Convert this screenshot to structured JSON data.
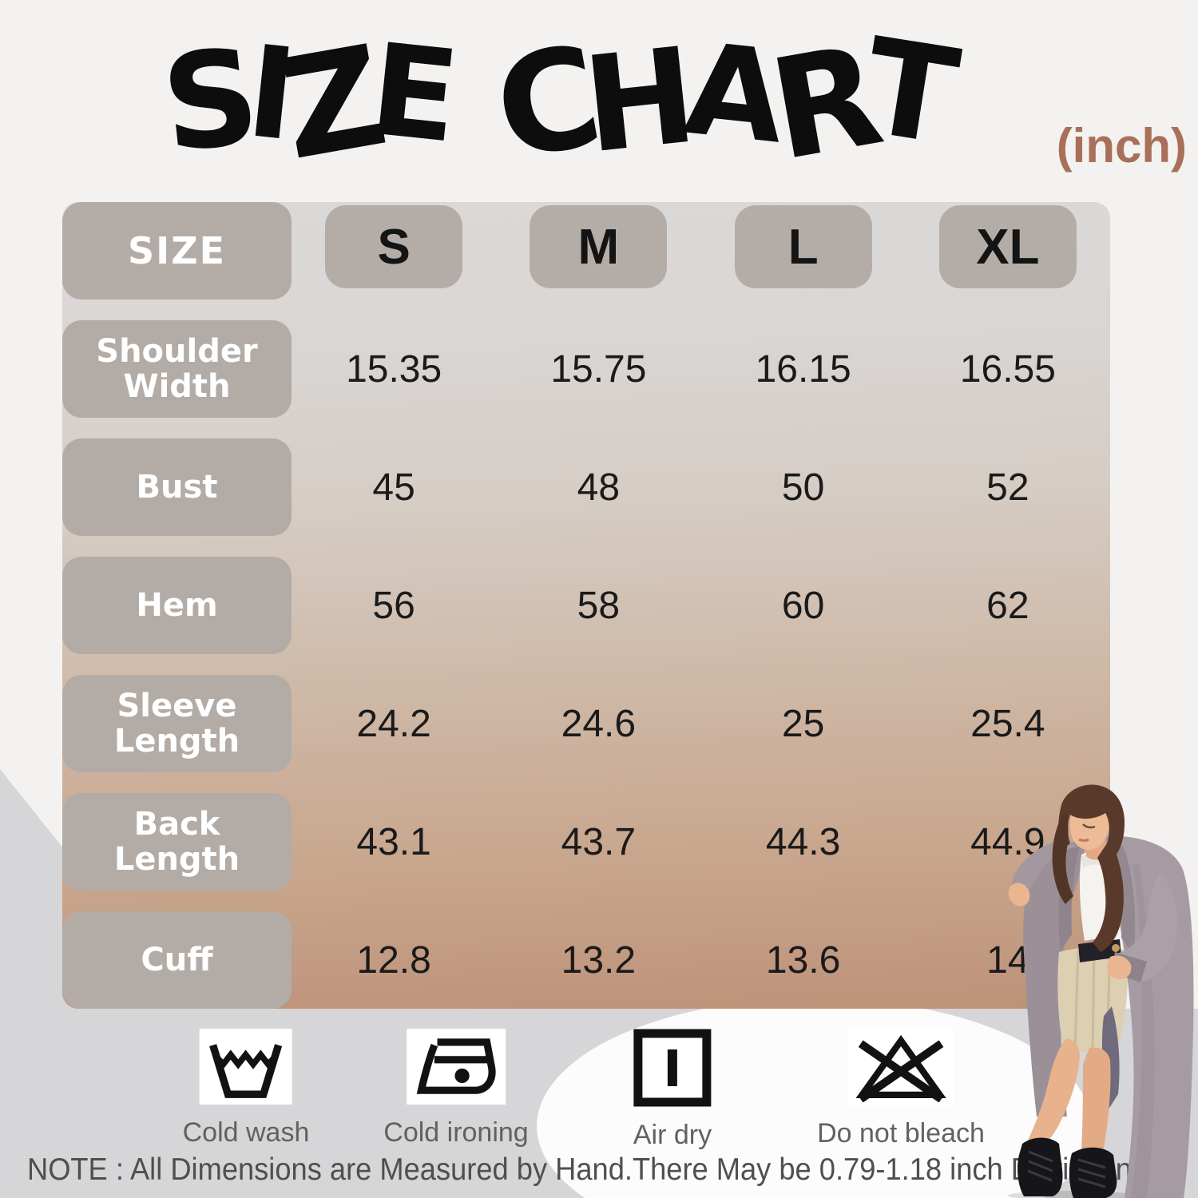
{
  "title": {
    "main": "SIZE CHART",
    "unit": "(inch)"
  },
  "table": {
    "header_label": "SIZE",
    "sizes": [
      "S",
      "M",
      "L",
      "XL"
    ],
    "rows": [
      {
        "label": "Shoulder Width",
        "values": [
          "15.35",
          "15.75",
          "16.15",
          "16.55"
        ]
      },
      {
        "label": "Bust",
        "values": [
          "45",
          "48",
          "50",
          "52"
        ]
      },
      {
        "label": "Hem",
        "values": [
          "56",
          "58",
          "60",
          "62"
        ]
      },
      {
        "label": "Sleeve Length",
        "values": [
          "24.2",
          "24.6",
          "25",
          "25.4"
        ]
      },
      {
        "label": "Back Length",
        "values": [
          "43.1",
          "43.7",
          "44.3",
          "44.9"
        ]
      },
      {
        "label": "Cuff",
        "values": [
          "12.8",
          "13.2",
          "13.6",
          "14"
        ]
      }
    ]
  },
  "care": [
    {
      "icon": "wash-tub-icon",
      "label": "Cold wash"
    },
    {
      "icon": "iron-icon",
      "label": "Cold ironing"
    },
    {
      "icon": "air-dry-icon",
      "label": "Air dry"
    },
    {
      "icon": "do-not-bleach-icon",
      "label": "Do not bleach"
    }
  ],
  "note": "NOTE : All Dimensions are Measured by Hand.There May be 0.79-1.18 inch Deviation",
  "colors": {
    "page_bg": "#f3f2f0",
    "bottom_band": "#d6d5d7",
    "highlight_ellipse": "#fcfcfc",
    "title_text": "#0d0d0d",
    "unit_text": "#a86f59",
    "header_cell_bg": "#b3aca6",
    "header_cell_text": "#ffffff",
    "size_head_text": "#141414",
    "value_text": "#1a1a1a",
    "table_gradient_top": "#dbd9d8",
    "table_gradient_bottom": "#bd9279",
    "care_label_text": "#616161",
    "note_text": "#4f4f4f"
  },
  "chart_data": {
    "type": "table",
    "title": "SIZE CHART",
    "unit": "inch",
    "columns": [
      "SIZE",
      "S",
      "M",
      "L",
      "XL"
    ],
    "rows": [
      [
        "Shoulder Width",
        15.35,
        15.75,
        16.15,
        16.55
      ],
      [
        "Bust",
        45,
        48,
        50,
        52
      ],
      [
        "Hem",
        56,
        58,
        60,
        62
      ],
      [
        "Sleeve Length",
        24.2,
        24.6,
        25,
        25.4
      ],
      [
        "Back Length",
        43.1,
        43.7,
        44.3,
        44.9
      ],
      [
        "Cuff",
        12.8,
        13.2,
        13.6,
        14
      ]
    ],
    "footnote": "NOTE : All Dimensions are Measured by Hand.There May be 0.79-1.18 inch Deviation"
  }
}
